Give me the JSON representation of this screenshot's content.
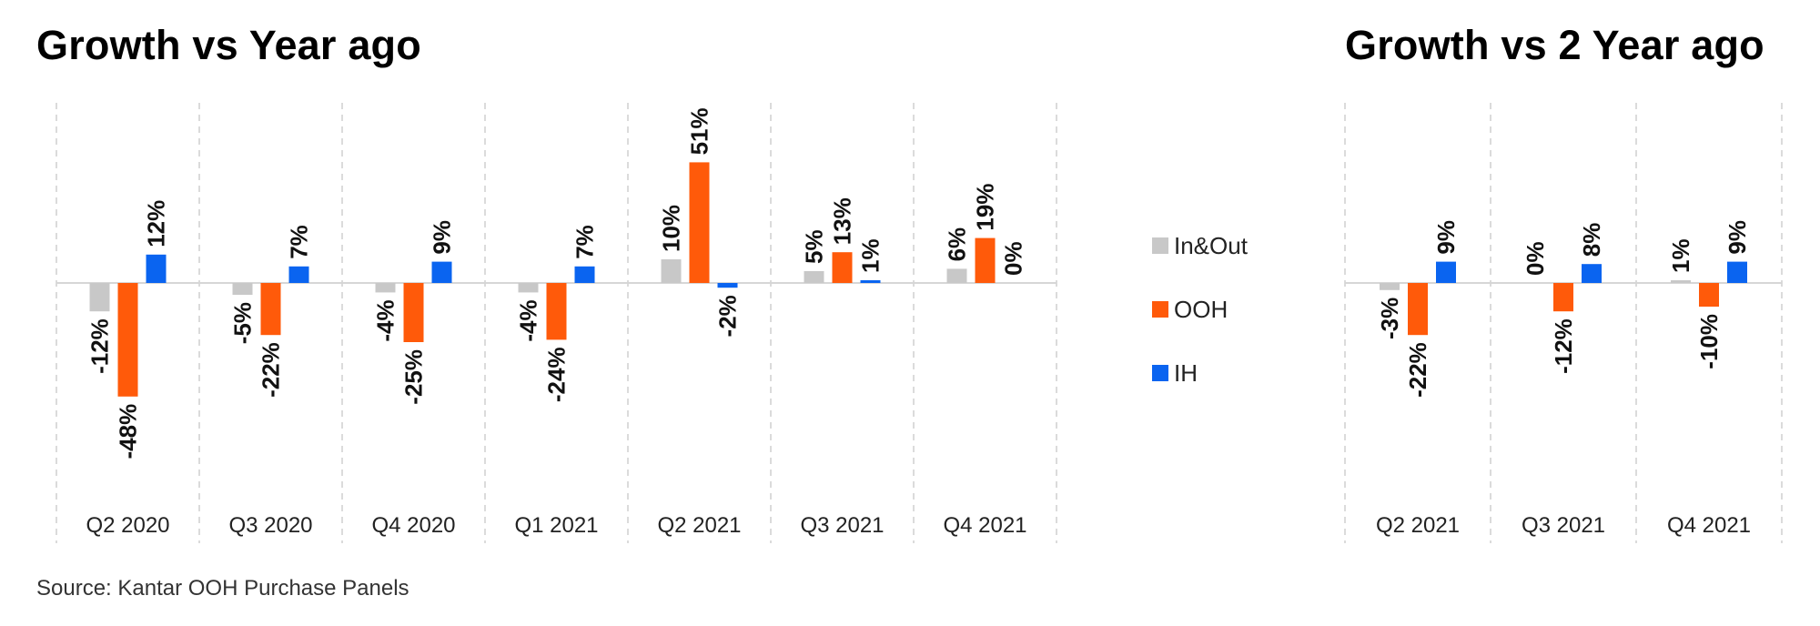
{
  "titles": {
    "left": "Growth vs Year ago",
    "right": "Growth vs 2 Year ago"
  },
  "source": "Source: Kantar OOH Purchase Panels",
  "colors": {
    "In&Out": "#c8c8c8",
    "OOH": "#ff5a0a",
    "IH": "#0a64f0",
    "grid": "#cfcfcf",
    "axis": "#d6d6d6"
  },
  "legend": [
    {
      "name": "In&Out",
      "color": "#c8c8c8"
    },
    {
      "name": "OOH",
      "color": "#ff5a0a"
    },
    {
      "name": "IH",
      "color": "#0a64f0"
    }
  ],
  "chart_data": [
    {
      "type": "bar",
      "title": "Growth vs Year ago",
      "categories": [
        "Q2 2020",
        "Q3 2020",
        "Q4 2020",
        "Q1 2021",
        "Q2 2021",
        "Q3 2021",
        "Q4 2021"
      ],
      "series": [
        {
          "name": "In&Out",
          "values": [
            -12,
            -5,
            -4,
            -4,
            10,
            5,
            6
          ]
        },
        {
          "name": "OOH",
          "values": [
            -48,
            -22,
            -25,
            -24,
            51,
            13,
            19
          ]
        },
        {
          "name": "IH",
          "values": [
            12,
            7,
            9,
            7,
            -2,
            1,
            0
          ]
        }
      ],
      "value_labels": [
        [
          "-12%",
          "-48%",
          "12%"
        ],
        [
          "-5%",
          "-22%",
          "7%"
        ],
        [
          "-4%",
          "-25%",
          "9%"
        ],
        [
          "-4%",
          "-24%",
          "7%"
        ],
        [
          "10%",
          "51%",
          "-2%"
        ],
        [
          "5%",
          "13%",
          "1%"
        ],
        [
          "6%",
          "19%",
          "0%"
        ]
      ],
      "unit": "%",
      "grid": "vertical dashed separators",
      "legend_position": "right"
    },
    {
      "type": "bar",
      "title": "Growth vs 2 Year ago",
      "categories": [
        "Q2 2021",
        "Q3 2021",
        "Q4 2021"
      ],
      "series": [
        {
          "name": "In&Out",
          "values": [
            -3,
            0,
            1
          ]
        },
        {
          "name": "OOH",
          "values": [
            -22,
            -12,
            -10
          ]
        },
        {
          "name": "IH",
          "values": [
            9,
            8,
            9
          ]
        }
      ],
      "value_labels": [
        [
          "-3%",
          "-22%",
          "9%"
        ],
        [
          "0%",
          "-12%",
          "8%"
        ],
        [
          "1%",
          "-10%",
          "9%"
        ]
      ],
      "unit": "%",
      "grid": "vertical dashed separators",
      "legend_position": "left"
    }
  ]
}
